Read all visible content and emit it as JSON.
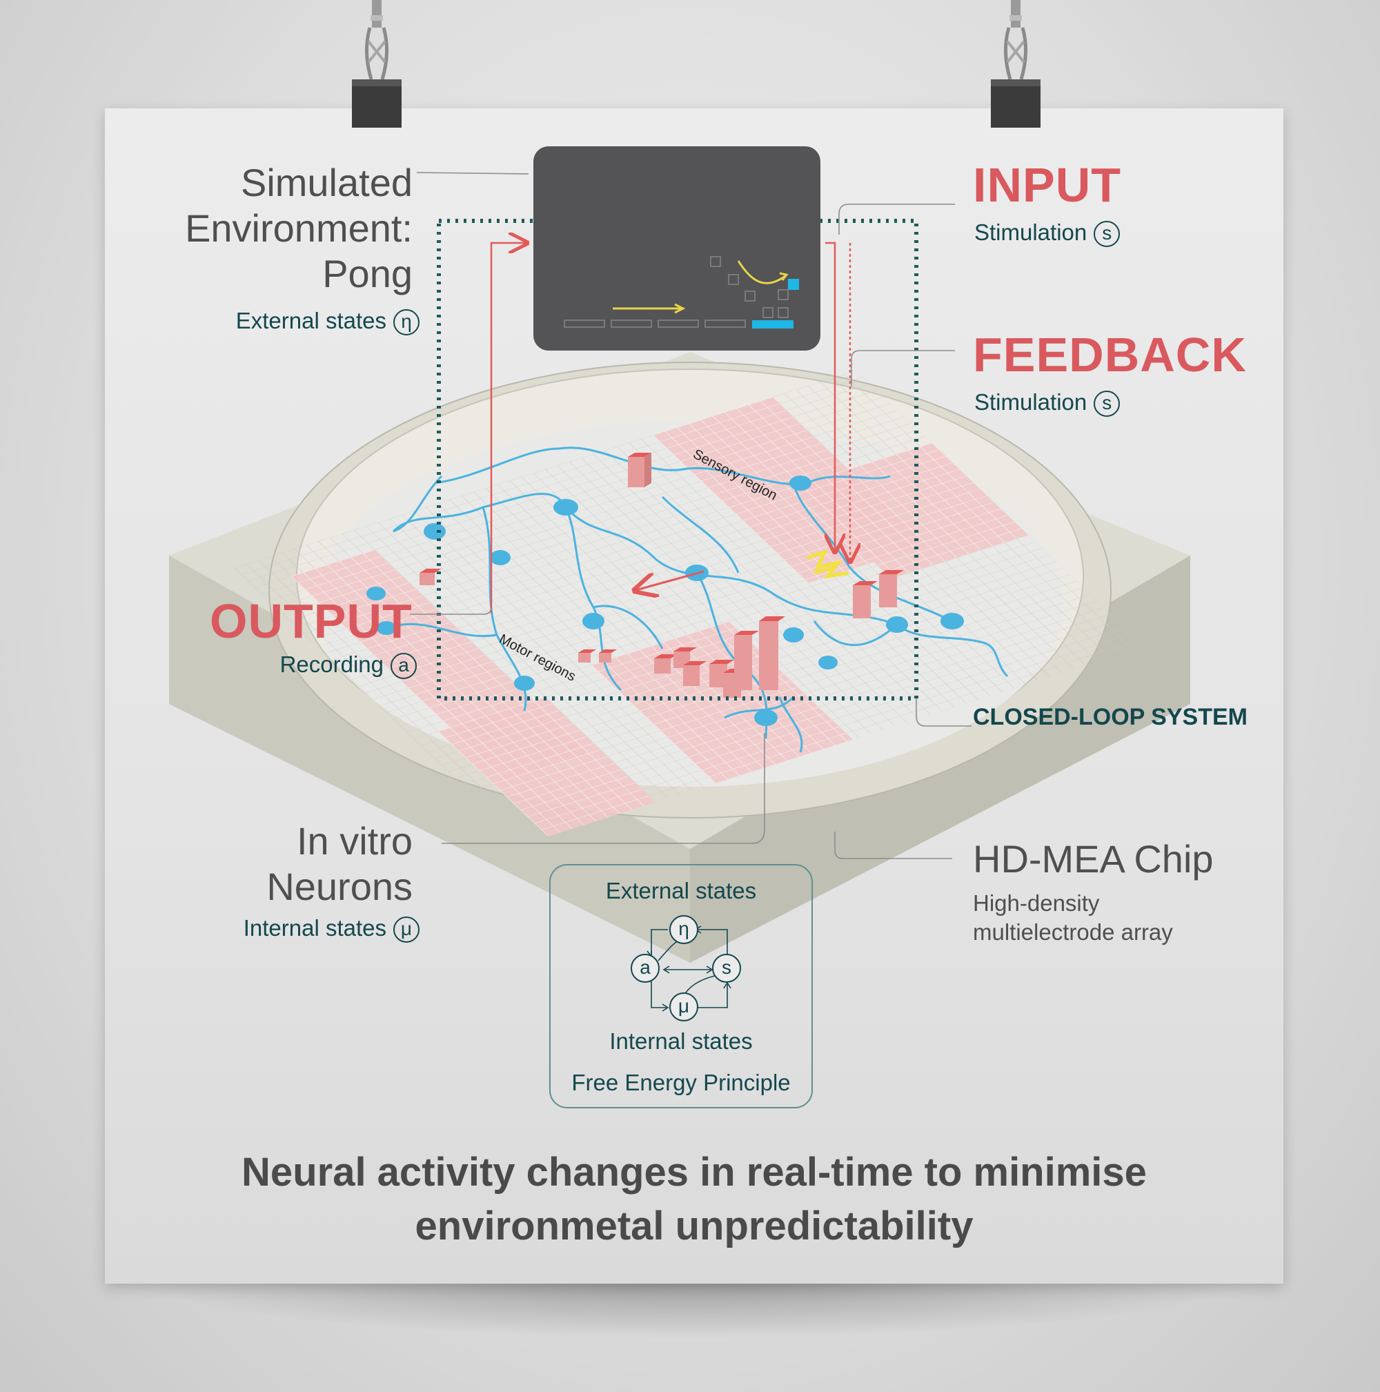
{
  "environment": {
    "title_lines": [
      "Simulated",
      "Environment:",
      "Pong"
    ],
    "state_label": "External states",
    "state_symbol": "η"
  },
  "input": {
    "title": "INPUT",
    "subtitle": "Stimulation",
    "symbol": "s"
  },
  "feedback": {
    "title": "FEEDBACK",
    "subtitle": "Stimulation",
    "symbol": "s"
  },
  "output": {
    "title": "OUTPUT",
    "subtitle": "Recording",
    "symbol": "a"
  },
  "closed_loop": {
    "label": "CLOSED-LOOP SYSTEM"
  },
  "neurons": {
    "title_lines": [
      "In vitro",
      "Neurons"
    ],
    "state_label": "Internal states",
    "state_symbol": "μ"
  },
  "chip": {
    "title": "HD-MEA Chip",
    "desc_lines": [
      "High-density",
      "multielectrode array"
    ]
  },
  "regions": {
    "sensory": "Sensory region",
    "motor": "Motor regions"
  },
  "fep": {
    "top_label": "External states",
    "bottom_label": "Internal states",
    "caption": "Free Energy Principle",
    "nodes": {
      "eta": "η",
      "a": "a",
      "s": "s",
      "mu": "μ"
    }
  },
  "headline_lines": [
    "Neural activity changes in real-time to minimise",
    "environmetal unpredictability"
  ],
  "colors": {
    "accent_red": "#d9595e",
    "teal": "#14474d",
    "neuron_blue": "#4ab3e0",
    "screen": "#545456",
    "pong_cyan": "#1fb8e6",
    "pong_yellow": "#e8d44a"
  }
}
